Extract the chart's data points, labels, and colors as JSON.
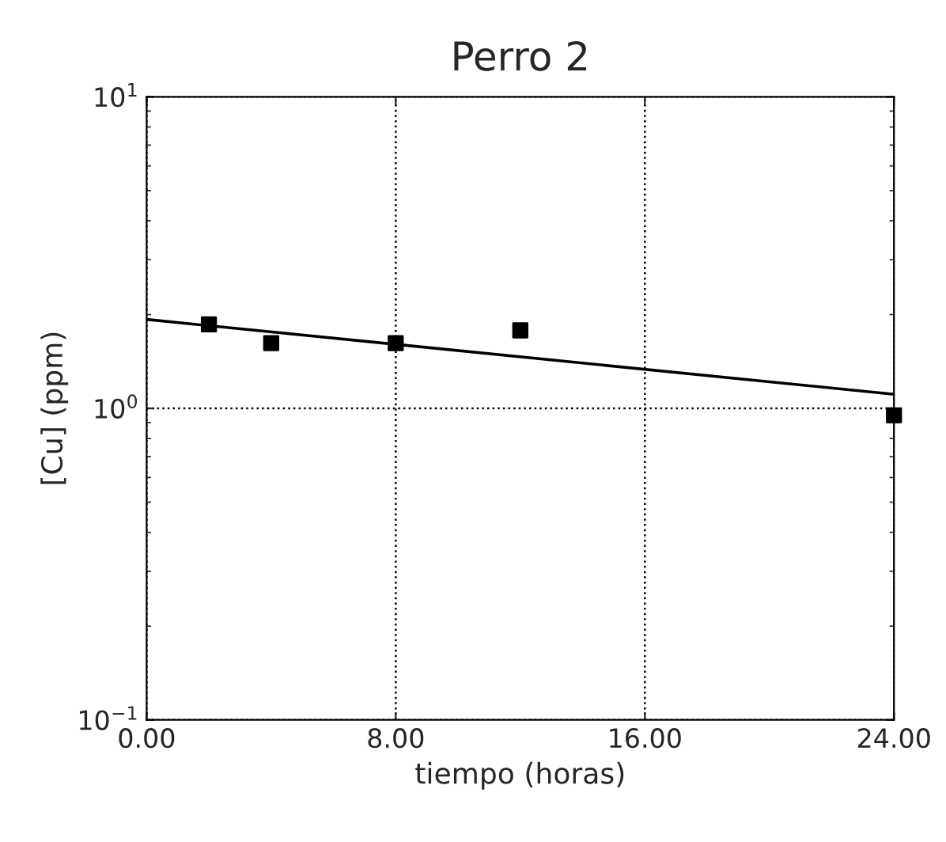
{
  "chart_data": {
    "type": "scatter",
    "title": "Perro 2",
    "xlabel": "tiempo (horas)",
    "ylabel": "[Cu] (ppm)",
    "series": [
      {
        "color": "#000000",
        "marker": "square",
        "x": [
          2,
          4,
          8,
          12,
          24
        ],
        "values": [
          1.86,
          1.62,
          1.62,
          1.78,
          0.95
        ]
      },
      {
        "type": "line",
        "color": "#000000",
        "marker": "none",
        "line_style": "solid",
        "x": [
          0,
          24
        ],
        "values": [
          1.93,
          1.11
        ]
      }
    ],
    "log": "y",
    "xlim": [
      0,
      24
    ],
    "ylim": [
      0.1,
      10
    ],
    "xticks": [
      {
        "value": 0,
        "label": "0.00"
      },
      {
        "value": 8,
        "label": "8.00"
      },
      {
        "value": 16,
        "label": "16.00"
      },
      {
        "value": 24,
        "label": "24.00"
      }
    ],
    "yticks": [
      {
        "value": 0.1,
        "label": "10$^{−1}$"
      },
      {
        "value": 1,
        "label": "10$^{0}$"
      },
      {
        "value": 10,
        "label": "10$^{1}$"
      }
    ],
    "grid": true
  }
}
